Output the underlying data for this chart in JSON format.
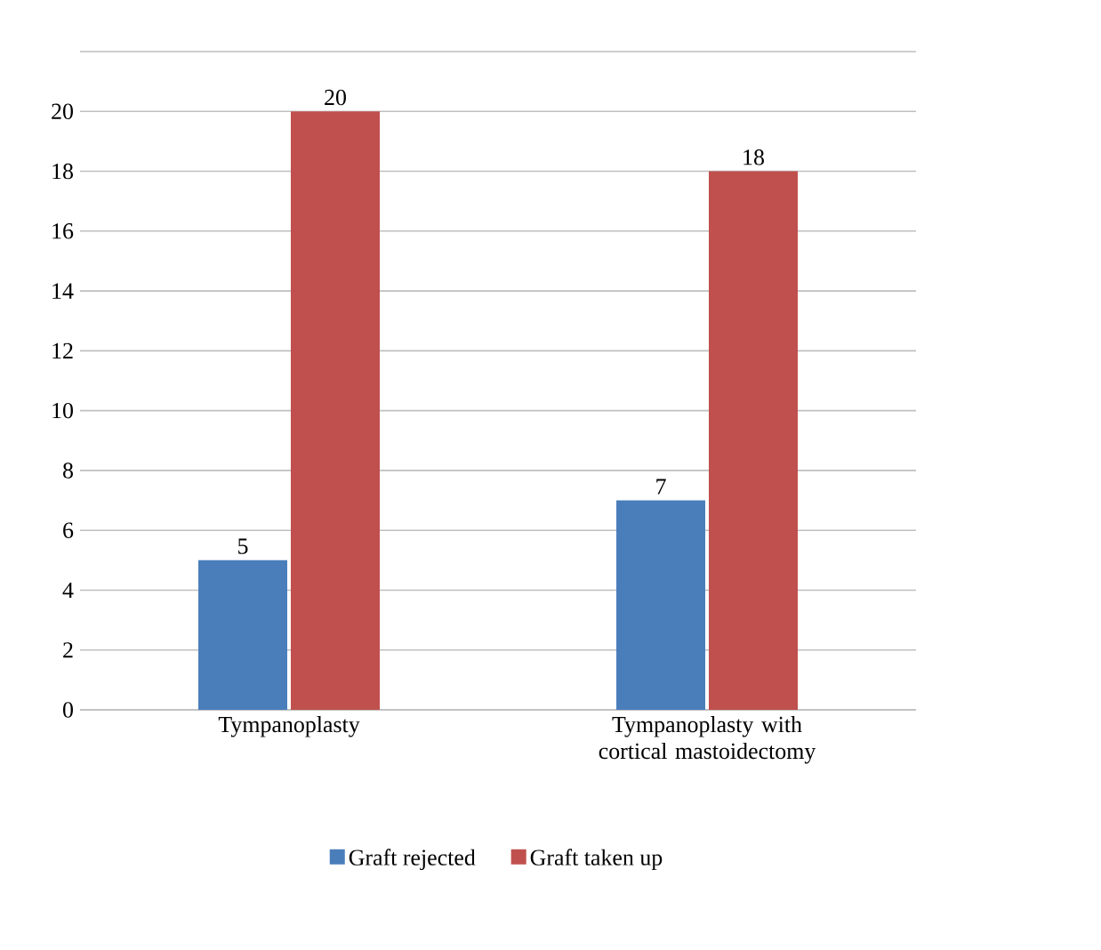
{
  "chart_data": {
    "type": "bar",
    "categories": [
      "Tympanoplasty",
      "Tympanoplasty with cortical mastoidectomy"
    ],
    "series": [
      {
        "name": "Graft rejected",
        "color": "#4a7ebb",
        "values": [
          5,
          7
        ]
      },
      {
        "name": "Graft taken up",
        "color": "#c0504d",
        "values": [
          20,
          18
        ]
      }
    ],
    "ylim": [
      0,
      22
    ],
    "yticks": [
      0,
      2,
      4,
      6,
      8,
      10,
      12,
      14,
      16,
      18,
      20,
      {
        "value": 22,
        "label": null
      }
    ],
    "grid": "y",
    "legend": "bottom",
    "data_labels": true
  }
}
